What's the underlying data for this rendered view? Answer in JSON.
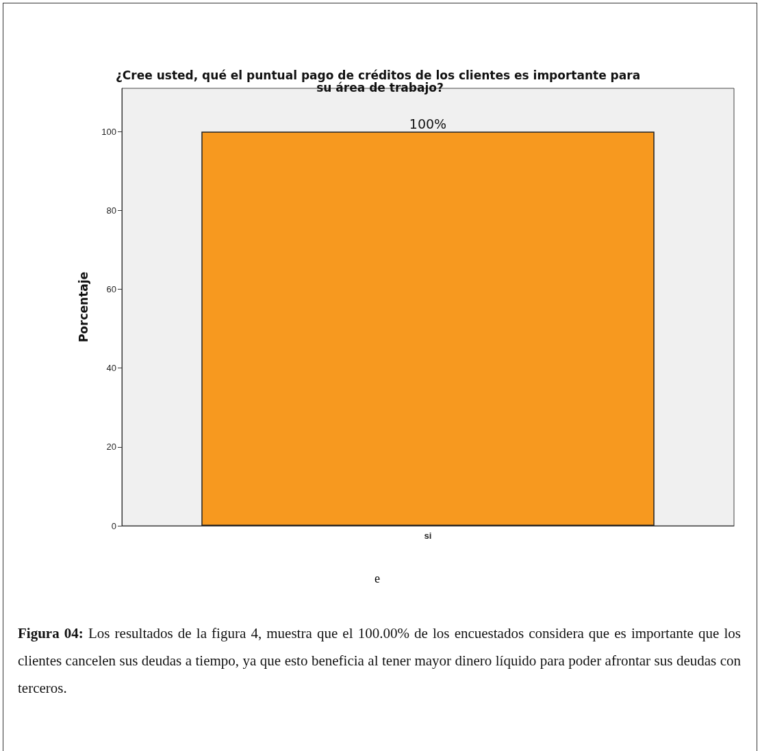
{
  "chart_data": {
    "type": "bar",
    "title": "¿Cree usted, qué el puntual pago de créditos de los clientes es importante para su área de trabajo?",
    "ylabel": "Porcentaje",
    "categories": [
      "si"
    ],
    "values": [
      100
    ],
    "value_labels": [
      "100%"
    ],
    "color": "#f7991f",
    "ylim": [
      0,
      111
    ],
    "yticks": [
      0,
      20,
      40,
      60,
      80,
      100
    ],
    "grid": false,
    "annotations": [
      "e",
      "Figura 04:",
      "Los resultados de la figura 4, muestra que el 100.00% de los encuestados considera que es importante que los clientes cancelen sus deudas a tiempo, ya que esto beneficia al tener mayor dinero líquido para poder afrontar sus deudas con terceros."
    ]
  }
}
